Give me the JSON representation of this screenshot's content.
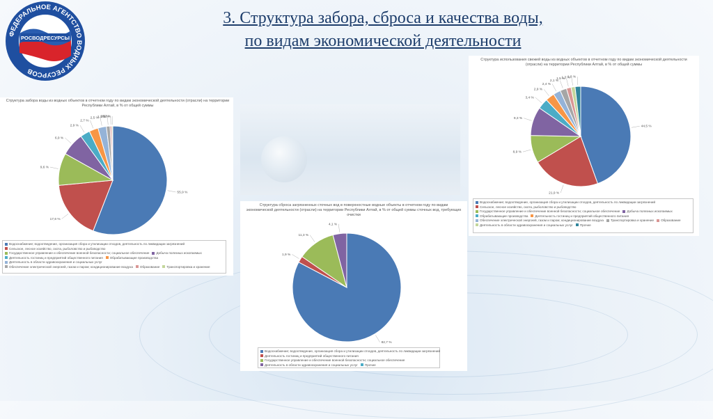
{
  "page": {
    "title_line1": "3. Структура забора, сброса и качества воды,",
    "title_line2": "по видам экономической деятельности"
  },
  "logo": {
    "ring_text": "ФЕДЕРАЛЬНОЕ АГЕНТСТВО ВОДНЫХ РЕСУРСОВ",
    "center_text": "РОСВОДРЕСУРСЫ"
  },
  "colors": {
    "c1": "#4a7ab5",
    "c2": "#c0504d",
    "c3": "#9bbb59",
    "c4": "#8064a2",
    "c5": "#4bacc6",
    "c6": "#f79646",
    "c7": "#95b3d7",
    "c8": "#a6a6a6",
    "c9": "#d99694",
    "c10": "#c3d69b",
    "c11": "#31859c",
    "c12": "#c0392b"
  },
  "chart_data": [
    {
      "type": "pie",
      "title": "Структура забора воды из водных объектов в отчетном году по видам экономической деятельности (отрасли) на территории Республики Алтай, в % от общей суммы",
      "values": [
        55.9,
        17.6,
        9.6,
        6.9,
        2.9,
        2.7,
        2.5,
        1.1,
        0.5,
        0.3
      ],
      "slice_labels": [
        "55,9 %",
        "17,6 %",
        "9,6 %",
        "6,9 %",
        "2,9 %",
        "2,7 %",
        "2,5 %",
        "1,1 %",
        "0,5 %",
        "0,3 %"
      ],
      "legend": [
        "Водоснабжение; водоотведение, организация сбора и утилизации отходов, деятельность по ликвидации загрязнений",
        "Сельское, лесное хозяйство, охота, рыболовство и рыбоводство",
        "Государственное управление и обеспечение военной безопасности; социальное обеспечение",
        "Добыча полезных ископаемых",
        "Деятельность гостиниц и предприятий общественного питания",
        "Обрабатывающие производства",
        "Деятельность в области здравоохранения и социальных услуг",
        "Обеспечение электрической энергией, газом и паром; кондиционирование воздуха",
        "Образование",
        "Транспортировка и хранение"
      ]
    },
    {
      "type": "pie",
      "title": "Структура сброса загрязненных сточных вод в поверхностные водные объекты в отчетном году по видам экономической деятельности (отрасли) на территории Республики Алтай, в % от общей суммы сточных вод, требующих очистки",
      "values": [
        82.7,
        1.9,
        11.3,
        4.1
      ],
      "slice_labels": [
        "82,7 %",
        "1,9 %",
        "11,3 %",
        "4,1 %"
      ],
      "legend": [
        "Водоснабжение; водоотведение, организация сбора и утилизации отходов, деятельность по ликвидации загрязнений",
        "Деятельность гостиниц и предприятий общественного питания",
        "Государственное управление и обеспечение военной безопасности; социальное обеспечение",
        "Деятельность в области здравоохранения и социальных услуг",
        "Прочие"
      ]
    },
    {
      "type": "pie",
      "title": "Структура использования свежей воды из водных объектов в отчетном году по видам экономической деятельности (отрасли) на территории Республики Алтай, в % от общей суммы",
      "values": [
        44.5,
        21.9,
        8.9,
        9.3,
        3.4,
        2.9,
        2.4,
        2.1,
        1.5,
        1.3,
        1.8
      ],
      "slice_labels": [
        "44,5 %",
        "21,9 %",
        "8,9 %",
        "9,3 %",
        "3,4 %",
        "2,9 %",
        "2,4 %",
        "2,1 %",
        "1,5 %",
        "1,3 %",
        "1,8 %"
      ],
      "legend": [
        "Водоснабжение; водоотведение, организация сбора и утилизации отходов, деятельность по ликвидации загрязнений",
        "Сельское, лесное хозяйство, охота, рыболовство и рыбоводство",
        "Государственное управление и обеспечение военной безопасности; социальное обеспечение",
        "Добыча полезных ископаемых",
        "Обрабатывающие производства",
        "Деятельность гостиниц и предприятий общественного питания",
        "Обеспечение электрической энергией, газом и паром; кондиционирование воздуха",
        "Транспортировка и хранение",
        "Образование",
        "Деятельность в области здравоохранения и социальных услуг",
        "Прочие"
      ]
    }
  ]
}
